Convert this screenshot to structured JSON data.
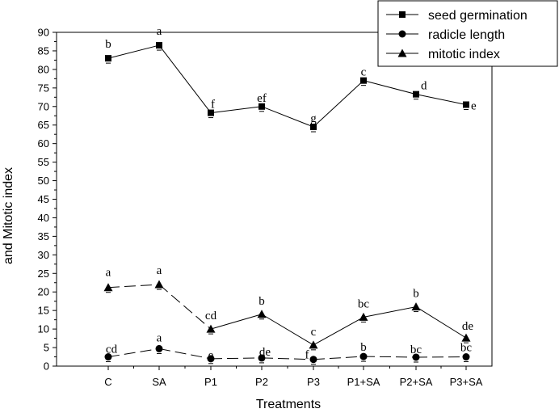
{
  "chart_data": {
    "type": "line",
    "title": "",
    "xlabel": "Treatments",
    "ylabel": "and Mitotic index",
    "categories": [
      "C",
      "SA",
      "P1",
      "P2",
      "P3",
      "P1+SA",
      "P2+SA",
      "P3+SA"
    ],
    "ylim": [
      0,
      90
    ],
    "yticks": [
      0,
      5,
      10,
      15,
      20,
      25,
      30,
      35,
      40,
      45,
      50,
      55,
      60,
      65,
      70,
      75,
      80,
      85,
      90
    ],
    "legend_position": "top-right",
    "series": [
      {
        "name": "seed germination",
        "marker": "square",
        "line": "solid",
        "values": [
          83,
          86.5,
          68.3,
          70,
          64.5,
          77,
          73.3,
          70.5
        ],
        "labels": [
          "b",
          "a",
          "f",
          "ef",
          "g",
          "c",
          "d",
          "e"
        ]
      },
      {
        "name": "radicle length",
        "marker": "circle",
        "line": "dashed",
        "values": [
          2.5,
          4.7,
          2,
          2.2,
          1.8,
          2.6,
          2.4,
          2.5
        ],
        "labels": [
          "cd",
          "a",
          "e",
          "de",
          "f",
          "b",
          "bc",
          "bc"
        ]
      },
      {
        "name": "mitotic index",
        "marker": "triangle",
        "line": "dashed-solid",
        "values": [
          21.2,
          22,
          10,
          14,
          5.7,
          13.2,
          16,
          7.6
        ],
        "labels": [
          "a",
          "a",
          "cd",
          "b",
          "c",
          "bc",
          "b",
          "de"
        ]
      }
    ]
  }
}
